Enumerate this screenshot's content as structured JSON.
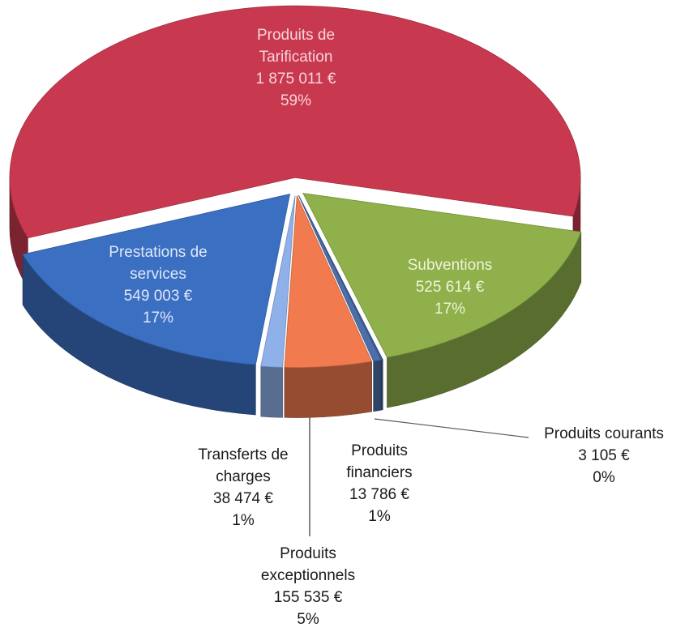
{
  "chart_data": {
    "type": "pie3d",
    "categories": [
      "Produits de Tarification",
      "Subventions",
      "Produits courants",
      "Produits financiers",
      "Produits exceptionnels",
      "Transferts de charges",
      "Prestations de services"
    ],
    "values": [
      1875011,
      525614,
      3105,
      13786,
      155535,
      38474,
      549003
    ],
    "value_labels": [
      "1 875 011 €",
      "525 614 €",
      "3 105 €",
      "13 786 €",
      "155 535 €",
      "38 474 €",
      "549 003 €"
    ],
    "percents": [
      59,
      17,
      0,
      1,
      5,
      1,
      17
    ],
    "percent_labels": [
      "59%",
      "17%",
      "0%",
      "1%",
      "5%",
      "1%",
      "17%"
    ],
    "colors": [
      "#c8394f",
      "#8fb04a",
      "#3a5f9a",
      "#4d6ea8",
      "#f27a4f",
      "#8fb0e8",
      "#3b6fc2"
    ]
  }
}
